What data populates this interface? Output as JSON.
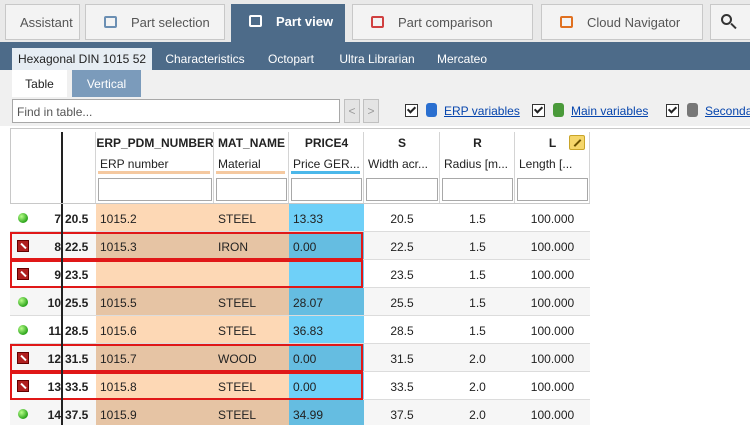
{
  "top_tabs": [
    {
      "label": "Assistant",
      "active": false
    },
    {
      "label": "Part selection",
      "active": false
    },
    {
      "label": "Part view",
      "active": true
    },
    {
      "label": "Part comparison",
      "active": false
    },
    {
      "label": "Cloud Navigator",
      "active": false
    }
  ],
  "sub_tabs": [
    {
      "label": "Hexagonal DIN 1015 52",
      "active": true
    },
    {
      "label": "Characteristics",
      "active": false
    },
    {
      "label": "Octopart",
      "active": false
    },
    {
      "label": "Ultra Librarian",
      "active": false
    },
    {
      "label": "Mercateo",
      "active": false
    }
  ],
  "view_tabs": [
    {
      "label": "Table",
      "active": true
    },
    {
      "label": "Vertical",
      "active": false
    }
  ],
  "toolbar": {
    "search_placeholder": "Find in table...",
    "checkboxes": [
      {
        "label": "ERP variables",
        "checked": true
      },
      {
        "label": "Main variables",
        "checked": true
      },
      {
        "label": "Seconda",
        "checked": true
      }
    ]
  },
  "table": {
    "columns": [
      {
        "name": "ERP_PDM_NUMBER",
        "description": "ERP number",
        "color": "#fdd8b5"
      },
      {
        "name": "MAT_NAME",
        "description": "Material",
        "color": "#fdd8b5"
      },
      {
        "name": "PRICE4",
        "description": "Price GER...",
        "color": "#6fd0f8"
      },
      {
        "name": "S",
        "description": "Width acr...",
        "color": null
      },
      {
        "name": "R",
        "description": "Radius [m...",
        "color": null
      },
      {
        "name": "L",
        "description": "Length [...",
        "color": null
      }
    ],
    "rows": [
      {
        "id": "7",
        "key": "20.5",
        "flagged": false,
        "cells": [
          "1015.2",
          "STEEL",
          "13.33",
          "20.5",
          "1.5",
          "100.000"
        ]
      },
      {
        "id": "8",
        "key": "22.5",
        "flagged": true,
        "cells": [
          "1015.3",
          "IRON",
          "0.00",
          "22.5",
          "1.5",
          "100.000"
        ]
      },
      {
        "id": "9",
        "key": "23.5",
        "flagged": true,
        "cells": [
          null,
          null,
          null,
          "23.5",
          "1.5",
          "100.000"
        ]
      },
      {
        "id": "10",
        "key": "25.5",
        "flagged": false,
        "cells": [
          "1015.5",
          "STEEL",
          "28.07",
          "25.5",
          "1.5",
          "100.000"
        ]
      },
      {
        "id": "11",
        "key": "28.5",
        "flagged": false,
        "cells": [
          "1015.6",
          "STEEL",
          "36.83",
          "28.5",
          "1.5",
          "100.000"
        ]
      },
      {
        "id": "12",
        "key": "31.5",
        "flagged": true,
        "cells": [
          "1015.7",
          "WOOD",
          "0.00",
          "31.5",
          "2.0",
          "100.000"
        ]
      },
      {
        "id": "13",
        "key": "33.5",
        "flagged": true,
        "cells": [
          "1015.8",
          "STEEL",
          "0.00",
          "33.5",
          "2.0",
          "100.000"
        ]
      },
      {
        "id": "14",
        "key": "37.5",
        "flagged": false,
        "cells": [
          "1015.9",
          "STEEL",
          "34.99",
          "37.5",
          "2.0",
          "100.000"
        ]
      }
    ]
  }
}
